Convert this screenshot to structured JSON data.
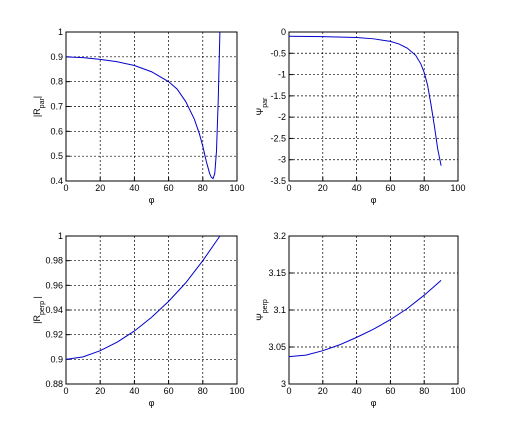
{
  "chart_data": [
    {
      "type": "line",
      "xlabel": "φ",
      "ylabel": [
        "|R",
        "par",
        "|"
      ],
      "x": [
        0,
        10,
        20,
        30,
        40,
        50,
        60,
        65,
        70,
        75,
        78,
        80,
        82,
        84,
        85,
        86,
        87,
        88,
        89,
        90
      ],
      "values": [
        0.9,
        0.897,
        0.89,
        0.88,
        0.865,
        0.84,
        0.8,
        0.77,
        0.72,
        0.65,
        0.59,
        0.54,
        0.48,
        0.43,
        0.415,
        0.41,
        0.43,
        0.52,
        0.72,
        1.0
      ],
      "color": "#0000cc",
      "xlim": [
        0,
        100
      ],
      "ylim": [
        0.4,
        1
      ],
      "xticks": [
        0,
        20,
        40,
        60,
        80,
        100
      ],
      "yticks": [
        0.4,
        0.5,
        0.6,
        0.7,
        0.8,
        0.9,
        1
      ],
      "grid": true
    },
    {
      "type": "line",
      "xlabel": "φ",
      "ylabel": [
        "Ψ",
        "par"
      ],
      "x": [
        0,
        20,
        40,
        50,
        60,
        65,
        70,
        75,
        78,
        80,
        82,
        84,
        86,
        88,
        90
      ],
      "values": [
        -0.1,
        -0.11,
        -0.13,
        -0.16,
        -0.22,
        -0.28,
        -0.38,
        -0.55,
        -0.75,
        -0.95,
        -1.25,
        -1.7,
        -2.2,
        -2.75,
        -3.14
      ],
      "color": "#0000cc",
      "xlim": [
        0,
        100
      ],
      "ylim": [
        -3.5,
        0
      ],
      "xticks": [
        0,
        20,
        40,
        60,
        80,
        100
      ],
      "yticks": [
        -3.5,
        -3,
        -2.5,
        -2,
        -1.5,
        -1,
        -0.5,
        0
      ],
      "grid": true
    },
    {
      "type": "line",
      "xlabel": "φ",
      "ylabel": [
        "|R",
        "perp",
        " |"
      ],
      "x": [
        0,
        10,
        20,
        30,
        40,
        50,
        60,
        70,
        80,
        90
      ],
      "values": [
        0.9,
        0.902,
        0.907,
        0.914,
        0.923,
        0.934,
        0.947,
        0.962,
        0.98,
        1.0
      ],
      "color": "#0000cc",
      "xlim": [
        0,
        100
      ],
      "ylim": [
        0.88,
        1
      ],
      "xticks": [
        0,
        20,
        40,
        60,
        80,
        100
      ],
      "yticks": [
        0.88,
        0.9,
        0.92,
        0.94,
        0.96,
        0.98,
        1
      ],
      "grid": true
    },
    {
      "type": "line",
      "xlabel": "φ",
      "ylabel": [
        "Ψ",
        "perp"
      ],
      "x": [
        0,
        10,
        20,
        30,
        40,
        50,
        60,
        70,
        80,
        90
      ],
      "values": [
        3.037,
        3.039,
        3.045,
        3.053,
        3.063,
        3.074,
        3.087,
        3.102,
        3.12,
        3.14
      ],
      "color": "#0000cc",
      "xlim": [
        0,
        100
      ],
      "ylim": [
        3,
        3.2
      ],
      "xticks": [
        0,
        20,
        40,
        60,
        80,
        100
      ],
      "yticks": [
        3,
        3.05,
        3.1,
        3.15,
        3.2
      ],
      "grid": true
    }
  ]
}
